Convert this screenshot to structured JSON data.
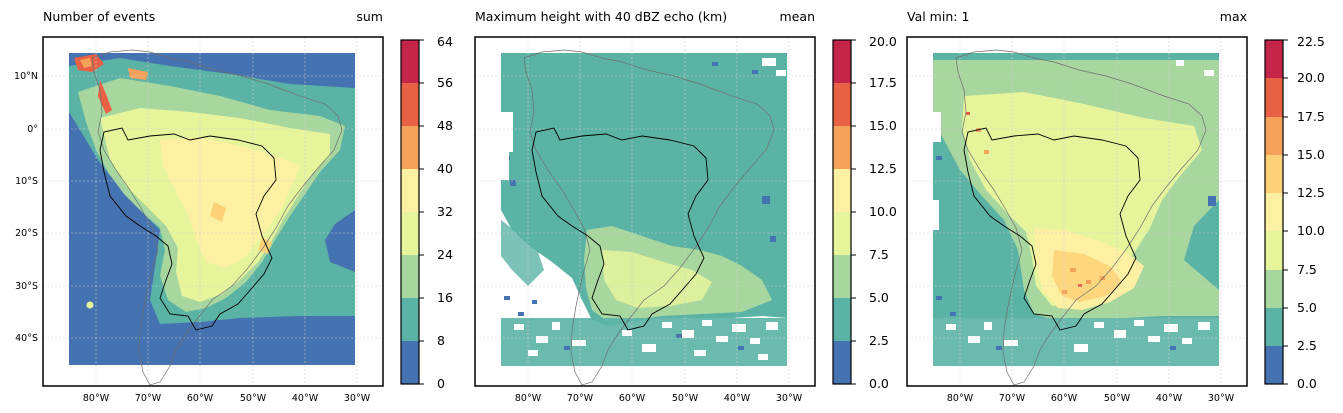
{
  "panels": [
    {
      "title_left": "Number of events",
      "title_right": "sum",
      "colorbar_ticks": [
        "0",
        "8",
        "16",
        "24",
        "32",
        "40",
        "48",
        "56",
        "64"
      ],
      "lat_labels": [
        "10°N",
        "0°",
        "10°S",
        "20°S",
        "30°S",
        "40°S"
      ],
      "lon_labels": [
        "80°W",
        "70°W",
        "60°W",
        "50°W",
        "40°W",
        "30°W"
      ]
    },
    {
      "title_left": "Maximum height with 40 dBZ echo (km)",
      "title_right": "mean",
      "colorbar_ticks": [
        "0.0",
        "2.5",
        "5.0",
        "7.5",
        "10.0",
        "12.5",
        "15.0",
        "17.5",
        "20.0"
      ],
      "lon_labels": [
        "80°W",
        "70°W",
        "60°W",
        "50°W",
        "40°W",
        "30°W"
      ]
    },
    {
      "title_left": "Val min: 1",
      "title_right": "max",
      "colorbar_ticks": [
        "0.0",
        "2.5",
        "5.0",
        "7.5",
        "10.0",
        "12.5",
        "15.0",
        "17.5",
        "20.0",
        "22.5"
      ],
      "lon_labels": [
        "80°W",
        "70°W",
        "60°W",
        "50°W",
        "40°W",
        "30°W"
      ]
    }
  ],
  "colors": {
    "palette": [
      "#4572b0",
      "#5bb3a5",
      "#a7d69f",
      "#e6f59c",
      "#fdf0a2",
      "#fdd178",
      "#f5a15a",
      "#e86144",
      "#c42549",
      "#a60e43"
    ],
    "map_background": "#ffffff",
    "grid": "#cfcfcf"
  }
}
